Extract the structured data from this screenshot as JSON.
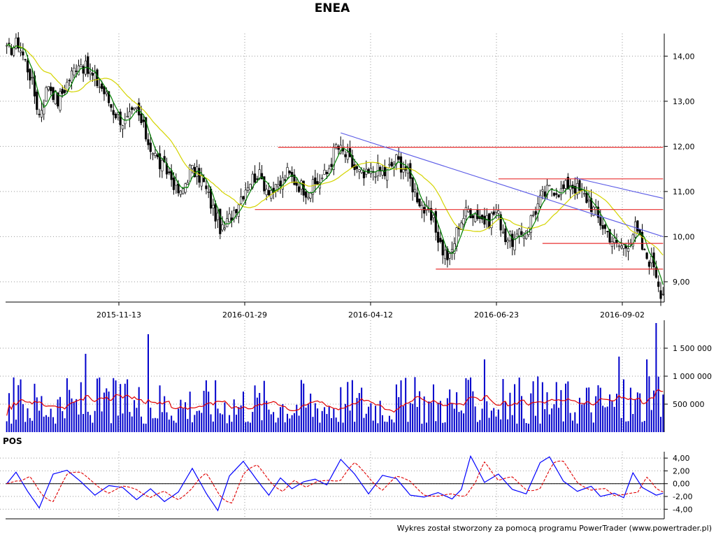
{
  "chart_title": "ENEA",
  "footer_text": "Wykres został stworzony za pomocą programu PowerTrader (www.powertrader.pl)",
  "colors": {
    "grid": "#9a9a9a",
    "candle": "#000000",
    "ma_fast": "#008000",
    "ma_slow": "#d4d400",
    "support_lines": "#e83030",
    "trend_lines": "#5a5ae6",
    "volume_bars": "#0000cc",
    "volume_ma": "#e00000",
    "pos_line": "#0000ff",
    "pos_signal": "#e00000"
  },
  "chart_data": [
    {
      "type": "candlestick",
      "title": "ENEA",
      "x_tick_labels": [
        "2015-11-13",
        "2016-01-29",
        "2016-04-12",
        "2016-06-23",
        "2016-09-02"
      ],
      "y_tick_labels": [
        "9,00",
        "10,00",
        "11,00",
        "12,00",
        "13,00",
        "14,00"
      ],
      "y_ticks": [
        9,
        10,
        11,
        12,
        13,
        14
      ],
      "ylim": [
        8.55,
        14.5
      ],
      "legend": "none",
      "grid": true,
      "series": [
        {
          "kind": "ohlc",
          "close_path": [
            [
              0,
              14.1
            ],
            [
              5,
              14.3
            ],
            [
              10,
              13.6
            ],
            [
              14,
              12.7
            ],
            [
              18,
              13.4
            ],
            [
              22,
              13.0
            ],
            [
              27,
              13.5
            ],
            [
              31,
              13.9
            ],
            [
              36,
              13.6
            ],
            [
              41,
              13.3
            ],
            [
              46,
              12.8
            ],
            [
              51,
              12.5
            ],
            [
              56,
              12.8
            ],
            [
              61,
              12.1
            ],
            [
              66,
              11.6
            ],
            [
              70,
              11.4
            ],
            [
              75,
              10.9
            ],
            [
              79,
              11.5
            ],
            [
              84,
              11.3
            ],
            [
              89,
              10.6
            ],
            [
              93,
              10.1
            ],
            [
              97,
              10.5
            ],
            [
              101,
              10.9
            ],
            [
              104,
              11.2
            ],
            [
              108,
              11.4
            ],
            [
              112,
              11.1
            ],
            [
              116,
              11.0
            ],
            [
              121,
              11.4
            ],
            [
              125,
              11.2
            ],
            [
              130,
              11.0
            ],
            [
              134,
              11.2
            ],
            [
              138,
              11.4
            ],
            [
              142,
              12.0
            ],
            [
              146,
              11.8
            ],
            [
              150,
              11.5
            ],
            [
              154,
              11.3
            ],
            [
              159,
              11.5
            ],
            [
              163,
              11.4
            ],
            [
              168,
              11.7
            ],
            [
              172,
              11.5
            ],
            [
              176,
              11.0
            ],
            [
              180,
              10.6
            ],
            [
              184,
              10.3
            ],
            [
              188,
              9.7
            ],
            [
              191,
              9.5
            ],
            [
              195,
              10.3
            ],
            [
              199,
              10.6
            ],
            [
              203,
              10.5
            ],
            [
              207,
              10.3
            ],
            [
              211,
              10.6
            ],
            [
              215,
              10.0
            ],
            [
              219,
              9.9
            ],
            [
              223,
              10.1
            ],
            [
              227,
              10.5
            ],
            [
              231,
              10.9
            ],
            [
              235,
              11.1
            ],
            [
              239,
              11.0
            ],
            [
              243,
              11.2
            ],
            [
              247,
              11.0
            ],
            [
              251,
              10.8
            ],
            [
              255,
              10.4
            ],
            [
              259,
              10.1
            ],
            [
              263,
              9.8
            ],
            [
              267,
              9.8
            ],
            [
              271,
              10.2
            ],
            [
              275,
              9.6
            ],
            [
              279,
              9.4
            ],
            [
              282,
              8.8
            ]
          ]
        },
        {
          "kind": "ma_fast",
          "name": ""
        },
        {
          "kind": "ma_slow",
          "name": ""
        }
      ],
      "horizontal_levels": [
        {
          "y": 11.98,
          "x_from": 117,
          "x_to": 283
        },
        {
          "y": 11.28,
          "x_from": 212,
          "x_to": 283
        },
        {
          "y": 10.6,
          "x_from": 107,
          "x_to": 283
        },
        {
          "y": 9.85,
          "x_from": 231,
          "x_to": 283
        },
        {
          "y": 9.28,
          "x_from": 185,
          "x_to": 283
        }
      ],
      "trend_lines": [
        {
          "x1": 144,
          "y1": 12.3,
          "x2": 283,
          "y2": 10.0
        },
        {
          "x1": 245,
          "y1": 11.3,
          "x2": 283,
          "y2": 10.85
        }
      ]
    },
    {
      "type": "bar",
      "title": "",
      "y_tick_labels": [
        "500 000",
        "1 000 000",
        "1 500 000"
      ],
      "y_ticks": [
        500000,
        1000000,
        1500000
      ],
      "ylim": [
        0,
        2000000
      ],
      "grid": true,
      "spikes": [
        [
          34,
          1400000
        ],
        [
          61,
          1750000
        ],
        [
          264,
          1350000
        ],
        [
          280,
          1950000
        ],
        [
          276,
          1300000
        ],
        [
          206,
          1300000
        ]
      ],
      "typical_range": [
        150000,
        1000000
      ],
      "ma_level": 600000
    },
    {
      "type": "line",
      "title": "POS",
      "y_tick_labels": [
        "4,00",
        "2,00",
        "0,00",
        "-2,00",
        "-4,00"
      ],
      "y_ticks": [
        4,
        2,
        0,
        -2,
        -4
      ],
      "ylim": [
        -5.5,
        5
      ],
      "grid": true,
      "series": [
        {
          "kind": "oscillator",
          "name": "",
          "points": [
            [
              0,
              0
            ],
            [
              4,
              1.8
            ],
            [
              9,
              -1.2
            ],
            [
              14,
              -3.8
            ],
            [
              20,
              1.5
            ],
            [
              26,
              2.1
            ],
            [
              32,
              0.3
            ],
            [
              38,
              -1.8
            ],
            [
              44,
              -0.3
            ],
            [
              50,
              -0.6
            ],
            [
              56,
              -2.5
            ],
            [
              62,
              -0.8
            ],
            [
              68,
              -2.8
            ],
            [
              74,
              -1.3
            ],
            [
              80,
              2.4
            ],
            [
              86,
              -1.5
            ],
            [
              91,
              -4.2
            ],
            [
              96,
              1.2
            ],
            [
              102,
              3.5
            ],
            [
              108,
              0.5
            ],
            [
              113,
              -1.8
            ],
            [
              118,
              0.9
            ],
            [
              123,
              -0.8
            ],
            [
              128,
              0.3
            ],
            [
              133,
              0.7
            ],
            [
              138,
              -0.2
            ],
            [
              144,
              3.8
            ],
            [
              150,
              1.5
            ],
            [
              156,
              -1.6
            ],
            [
              162,
              1.3
            ],
            [
              168,
              0.8
            ],
            [
              174,
              -1.8
            ],
            [
              180,
              -2.1
            ],
            [
              186,
              -1.4
            ],
            [
              192,
              -2.4
            ],
            [
              196,
              -0.9
            ],
            [
              200,
              4.3
            ],
            [
              206,
              0.2
            ],
            [
              212,
              1.5
            ],
            [
              218,
              -0.9
            ],
            [
              224,
              -1.6
            ],
            [
              230,
              3.3
            ],
            [
              234,
              4.2
            ],
            [
              240,
              0.4
            ],
            [
              246,
              -1.2
            ],
            [
              252,
              -0.4
            ],
            [
              256,
              -2.0
            ],
            [
              262,
              -1.5
            ],
            [
              266,
              -2.2
            ],
            [
              270,
              1.7
            ],
            [
              274,
              -0.6
            ],
            [
              280,
              -1.8
            ],
            [
              283,
              -1.5
            ]
          ]
        },
        {
          "kind": "signal",
          "name": ""
        }
      ]
    }
  ]
}
